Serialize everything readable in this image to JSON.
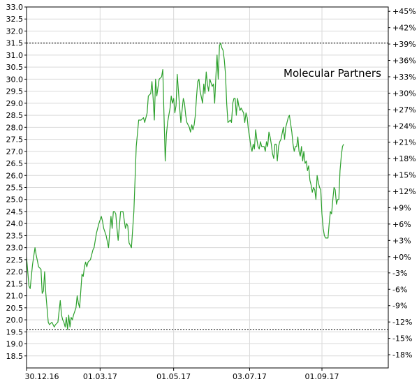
{
  "chart_data": {
    "type": "line",
    "title": "",
    "series_label": "Molecular Partners",
    "line_color": "#2ca02c",
    "grid": true,
    "grid_color": "#d9d9d9",
    "ylim": [
      18.0,
      33.0
    ],
    "y_ticks": [
      "18.5",
      "19.0",
      "19.5",
      "20.0",
      "20.5",
      "21.0",
      "21.5",
      "22.0",
      "22.5",
      "23.0",
      "23.5",
      "24.0",
      "24.5",
      "25.0",
      "25.5",
      "26.0",
      "26.5",
      "27.0",
      "27.5",
      "28.0",
      "28.5",
      "29.0",
      "29.5",
      "30.0",
      "30.5",
      "31.0",
      "31.5",
      "32.0",
      "32.5",
      "33.0"
    ],
    "y2_ticks": [
      {
        "label": "-18%",
        "value": 18.55
      },
      {
        "label": "-15%",
        "value": 19.23
      },
      {
        "label": "-12%",
        "value": 19.91
      },
      {
        "label": "-9%",
        "value": 20.59
      },
      {
        "label": "-6%",
        "value": 21.27
      },
      {
        "label": "-3%",
        "value": 21.95
      },
      {
        "label": "+0%",
        "value": 22.62
      },
      {
        "label": "+3%",
        "value": 23.3
      },
      {
        "label": "+6%",
        "value": 23.98
      },
      {
        "label": "+9%",
        "value": 24.66
      },
      {
        "label": "+12%",
        "value": 25.34
      },
      {
        "label": "+15%",
        "value": 26.02
      },
      {
        "label": "+18%",
        "value": 26.7
      },
      {
        "label": "+21%",
        "value": 27.38
      },
      {
        "label": "+24%",
        "value": 28.06
      },
      {
        "label": "+27%",
        "value": 28.74
      },
      {
        "label": "+30%",
        "value": 29.42
      },
      {
        "label": "+33%",
        "value": 30.1
      },
      {
        "label": "+36%",
        "value": 30.78
      },
      {
        "label": "+39%",
        "value": 31.46
      },
      {
        "label": "+42%",
        "value": 32.14
      },
      {
        "label": "+45%",
        "value": 32.82
      }
    ],
    "x_ticks": [
      {
        "label": "30.12.16",
        "day": 0
      },
      {
        "label": "01.03.17",
        "day": 61
      },
      {
        "label": "01.05.17",
        "day": 122
      },
      {
        "label": "03.07.17",
        "day": 185
      },
      {
        "label": "01.09.17",
        "day": 245
      }
    ],
    "x_range": [
      0,
      300
    ],
    "ref_lines": [
      31.5,
      19.6
    ],
    "series": [
      {
        "name": "Molecular Partners",
        "points": [
          [
            0,
            22.6
          ],
          [
            2,
            21.4
          ],
          [
            3,
            21.3
          ],
          [
            5,
            22.3
          ],
          [
            7,
            23.0
          ],
          [
            8,
            22.7
          ],
          [
            10,
            22.2
          ],
          [
            12,
            22.1
          ],
          [
            13,
            21.1
          ],
          [
            14,
            21.2
          ],
          [
            15,
            22.0
          ],
          [
            16,
            21.1
          ],
          [
            18,
            19.9
          ],
          [
            19,
            19.8
          ],
          [
            21,
            19.9
          ],
          [
            23,
            19.7
          ],
          [
            24,
            19.8
          ],
          [
            26,
            19.9
          ],
          [
            28,
            20.8
          ],
          [
            29,
            20.2
          ],
          [
            30,
            20.0
          ],
          [
            31,
            19.9
          ],
          [
            32,
            19.7
          ],
          [
            33,
            20.1
          ],
          [
            34,
            19.6
          ],
          [
            35,
            20.2
          ],
          [
            36,
            19.7
          ],
          [
            37,
            20.1
          ],
          [
            38,
            20.0
          ],
          [
            39,
            20.2
          ],
          [
            41,
            20.5
          ],
          [
            42,
            21.0
          ],
          [
            43,
            20.7
          ],
          [
            44,
            20.5
          ],
          [
            46,
            21.9
          ],
          [
            47,
            21.8
          ],
          [
            48,
            22.2
          ],
          [
            49,
            22.4
          ],
          [
            50,
            22.2
          ],
          [
            51,
            22.4
          ],
          [
            53,
            22.5
          ],
          [
            55,
            22.9
          ],
          [
            56,
            23.0
          ],
          [
            58,
            23.6
          ],
          [
            60,
            24.0
          ],
          [
            62,
            24.3
          ],
          [
            63,
            24.1
          ],
          [
            64,
            23.8
          ],
          [
            66,
            23.5
          ],
          [
            68,
            23.0
          ],
          [
            70,
            24.3
          ],
          [
            71,
            23.8
          ],
          [
            72,
            24.5
          ],
          [
            73,
            24.5
          ],
          [
            74,
            24.4
          ],
          [
            75,
            23.8
          ],
          [
            76,
            23.3
          ],
          [
            78,
            24.5
          ],
          [
            79,
            24.5
          ],
          [
            80,
            24.5
          ],
          [
            82,
            23.8
          ],
          [
            83,
            24.0
          ],
          [
            84,
            23.9
          ],
          [
            85,
            23.2
          ],
          [
            86,
            23.1
          ],
          [
            87,
            23.0
          ],
          [
            89,
            24.5
          ],
          [
            91,
            27.2
          ],
          [
            93,
            28.3
          ],
          [
            95,
            28.3
          ],
          [
            97,
            28.4
          ],
          [
            98,
            28.2
          ],
          [
            100,
            28.6
          ],
          [
            101,
            29.3
          ],
          [
            103,
            29.4
          ],
          [
            104,
            29.9
          ],
          [
            105,
            29.2
          ],
          [
            106,
            28.3
          ],
          [
            107,
            30.0
          ],
          [
            108,
            29.3
          ],
          [
            110,
            30.0
          ],
          [
            112,
            30.1
          ],
          [
            113,
            30.4
          ],
          [
            115,
            26.6
          ],
          [
            116,
            27.7
          ],
          [
            117,
            28.2
          ],
          [
            119,
            28.8
          ],
          [
            120,
            29.3
          ],
          [
            121,
            29.0
          ],
          [
            122,
            29.2
          ],
          [
            123,
            28.6
          ],
          [
            124,
            28.9
          ],
          [
            125,
            30.2
          ],
          [
            127,
            28.8
          ],
          [
            128,
            28.2
          ],
          [
            129,
            28.7
          ],
          [
            130,
            29.2
          ],
          [
            131,
            29.0
          ],
          [
            132,
            28.5
          ],
          [
            133,
            28.2
          ],
          [
            135,
            28.0
          ],
          [
            136,
            27.8
          ],
          [
            137,
            28.1
          ],
          [
            138,
            27.9
          ],
          [
            139,
            28.1
          ],
          [
            140,
            28.5
          ],
          [
            141,
            29.3
          ],
          [
            142,
            29.9
          ],
          [
            143,
            30.0
          ],
          [
            144,
            29.5
          ],
          [
            146,
            29.0
          ],
          [
            147,
            29.8
          ],
          [
            148,
            29.4
          ],
          [
            149,
            30.3
          ],
          [
            150,
            29.8
          ],
          [
            151,
            29.5
          ],
          [
            152,
            30.0
          ],
          [
            154,
            29.7
          ],
          [
            155,
            29.8
          ],
          [
            156,
            29.0
          ],
          [
            157,
            30.1
          ],
          [
            158,
            31.0
          ],
          [
            159,
            30.0
          ],
          [
            160,
            31.4
          ],
          [
            161,
            31.5
          ],
          [
            162,
            31.3
          ],
          [
            163,
            31.2
          ],
          [
            164,
            30.8
          ],
          [
            165,
            30.2
          ],
          [
            166,
            29.0
          ],
          [
            167,
            28.2
          ],
          [
            169,
            28.3
          ],
          [
            170,
            28.2
          ],
          [
            171,
            29.0
          ],
          [
            172,
            29.2
          ],
          [
            173,
            29.2
          ],
          [
            174,
            28.5
          ],
          [
            175,
            29.2
          ],
          [
            176,
            28.9
          ],
          [
            177,
            28.7
          ],
          [
            178,
            28.8
          ],
          [
            180,
            28.6
          ],
          [
            181,
            28.2
          ],
          [
            182,
            28.6
          ],
          [
            183,
            28.4
          ],
          [
            184,
            27.9
          ],
          [
            185,
            27.6
          ],
          [
            186,
            27.2
          ],
          [
            187,
            27.0
          ],
          [
            188,
            27.3
          ],
          [
            189,
            27.1
          ],
          [
            190,
            27.9
          ],
          [
            191,
            27.5
          ],
          [
            192,
            27.2
          ],
          [
            193,
            27.1
          ],
          [
            194,
            27.4
          ],
          [
            195,
            27.2
          ],
          [
            197,
            27.2
          ],
          [
            198,
            27.0
          ],
          [
            199,
            27.4
          ],
          [
            200,
            27.2
          ],
          [
            201,
            27.8
          ],
          [
            202,
            27.6
          ],
          [
            203,
            27.3
          ],
          [
            204,
            26.9
          ],
          [
            205,
            26.7
          ],
          [
            206,
            27.3
          ],
          [
            207,
            27.3
          ],
          [
            208,
            26.6
          ],
          [
            209,
            27.2
          ],
          [
            210,
            27.4
          ],
          [
            211,
            27.5
          ],
          [
            213,
            28.0
          ],
          [
            214,
            27.5
          ],
          [
            215,
            28.0
          ],
          [
            216,
            28.2
          ],
          [
            217,
            28.4
          ],
          [
            218,
            28.5
          ],
          [
            220,
            27.8
          ],
          [
            221,
            27.3
          ],
          [
            222,
            27.0
          ],
          [
            223,
            27.2
          ],
          [
            224,
            27.2
          ],
          [
            225,
            27.6
          ],
          [
            226,
            27.0
          ],
          [
            227,
            26.8
          ],
          [
            228,
            27.2
          ],
          [
            229,
            26.6
          ],
          [
            230,
            27.0
          ],
          [
            231,
            26.5
          ],
          [
            232,
            26.6
          ],
          [
            233,
            26.2
          ],
          [
            234,
            26.4
          ],
          [
            235,
            25.8
          ],
          [
            236,
            25.6
          ],
          [
            237,
            25.3
          ],
          [
            238,
            25.5
          ],
          [
            239,
            25.4
          ],
          [
            240,
            25.0
          ],
          [
            241,
            26.0
          ],
          [
            242,
            25.7
          ],
          [
            243,
            25.5
          ],
          [
            244,
            25.4
          ],
          [
            245,
            24.4
          ],
          [
            246,
            23.8
          ],
          [
            247,
            23.5
          ],
          [
            248,
            23.4
          ],
          [
            249,
            23.4
          ],
          [
            250,
            23.4
          ],
          [
            251,
            24.0
          ],
          [
            252,
            24.5
          ],
          [
            253,
            24.4
          ],
          [
            254,
            25.0
          ],
          [
            255,
            25.5
          ],
          [
            256,
            25.4
          ],
          [
            257,
            24.8
          ],
          [
            258,
            25.0
          ],
          [
            259,
            25.0
          ],
          [
            260,
            26.2
          ],
          [
            261,
            26.8
          ],
          [
            262,
            27.2
          ],
          [
            263,
            27.3
          ]
        ]
      }
    ]
  }
}
